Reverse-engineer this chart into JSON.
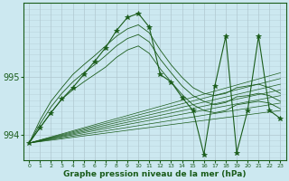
{
  "title": "Graphe pression niveau de la mer (hPa)",
  "background_color": "#cce8f0",
  "grid_color": "#b0c8d0",
  "line_color": "#1a5c1a",
  "xlim": [
    -0.5,
    23.5
  ],
  "ylim": [
    993.55,
    996.3
  ],
  "yticks": [
    994,
    995
  ],
  "xticks": [
    0,
    1,
    2,
    3,
    4,
    5,
    6,
    7,
    8,
    9,
    10,
    11,
    12,
    13,
    14,
    15,
    16,
    17,
    18,
    19,
    20,
    21,
    22,
    23
  ],
  "main_series": {
    "x": [
      0,
      1,
      2,
      3,
      4,
      5,
      6,
      7,
      8,
      9,
      10,
      11,
      12,
      13,
      14,
      15,
      16,
      17,
      18,
      19,
      20,
      21,
      22,
      23
    ],
    "y": [
      993.85,
      994.12,
      994.38,
      994.62,
      994.82,
      995.05,
      995.28,
      995.52,
      995.82,
      996.05,
      996.12,
      995.88,
      995.05,
      994.92,
      994.65,
      994.42,
      993.65,
      994.85,
      995.72,
      993.68,
      994.42,
      995.72,
      994.42,
      994.28
    ]
  },
  "fan_series": [
    {
      "x": [
        0,
        23
      ],
      "y": [
        993.85,
        994.42
      ]
    },
    {
      "x": [
        0,
        23
      ],
      "y": [
        993.85,
        994.55
      ]
    },
    {
      "x": [
        0,
        23
      ],
      "y": [
        993.85,
        994.68
      ]
    },
    {
      "x": [
        0,
        23
      ],
      "y": [
        993.85,
        994.78
      ]
    },
    {
      "x": [
        0,
        23
      ],
      "y": [
        993.85,
        994.88
      ]
    },
    {
      "x": [
        0,
        23
      ],
      "y": [
        993.85,
        994.98
      ]
    },
    {
      "x": [
        0,
        23
      ],
      "y": [
        993.85,
        995.08
      ]
    }
  ],
  "envelope_top": {
    "x": [
      0,
      1,
      2,
      3,
      4,
      5,
      6,
      7,
      8,
      9,
      10,
      11,
      12,
      13,
      14,
      15,
      16,
      17,
      18,
      19,
      20,
      21,
      22,
      23
    ],
    "y": [
      993.85,
      994.25,
      994.58,
      994.82,
      995.05,
      995.22,
      995.38,
      995.55,
      995.72,
      995.85,
      995.92,
      995.78,
      995.48,
      995.22,
      995.0,
      994.82,
      994.72,
      994.68,
      994.72,
      994.82,
      994.85,
      994.88,
      994.82,
      994.72
    ]
  },
  "envelope_mid1": {
    "x": [
      0,
      1,
      2,
      3,
      4,
      5,
      6,
      7,
      8,
      9,
      10,
      11,
      12,
      13,
      14,
      15,
      16,
      17,
      18,
      19,
      20,
      21,
      22,
      23
    ],
    "y": [
      993.85,
      994.18,
      994.48,
      994.72,
      994.92,
      995.08,
      995.22,
      995.38,
      995.55,
      995.68,
      995.75,
      995.62,
      995.32,
      995.08,
      994.85,
      994.68,
      994.58,
      994.52,
      994.56,
      994.66,
      994.68,
      994.72,
      994.68,
      994.58
    ]
  },
  "envelope_mid2": {
    "x": [
      0,
      1,
      2,
      3,
      4,
      5,
      6,
      7,
      8,
      9,
      10,
      11,
      12,
      13,
      14,
      15,
      16,
      17,
      18,
      19,
      20,
      21,
      22,
      23
    ],
    "y": [
      993.85,
      994.12,
      994.38,
      994.62,
      994.78,
      994.92,
      995.05,
      995.18,
      995.35,
      995.48,
      995.55,
      995.42,
      995.15,
      994.92,
      994.7,
      994.52,
      994.42,
      994.38,
      994.42,
      994.52,
      994.55,
      994.58,
      994.55,
      994.45
    ]
  }
}
